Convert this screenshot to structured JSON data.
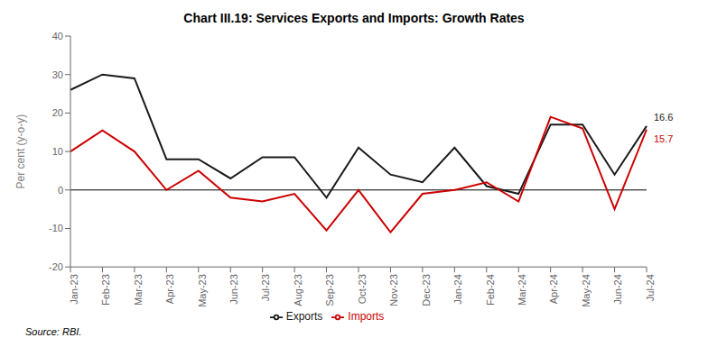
{
  "chart_data": {
    "type": "line",
    "title": "Chart III.19: Services Exports and Imports: Growth Rates",
    "ylabel": "Per cent (y-o-y)",
    "source": "Source: RBI.",
    "categories": [
      "Jan-23",
      "Feb-23",
      "Mar-23",
      "Apr-23",
      "May-23",
      "Jun-23",
      "Jul-23",
      "Aug-23",
      "Sep-23",
      "Oct-23",
      "Nov-23",
      "Dec-23",
      "Jan-24",
      "Feb-24",
      "Mar-24",
      "Apr-24",
      "May-24",
      "Jun-24",
      "Jul-24"
    ],
    "series": [
      {
        "name": "Exports",
        "color": "#1a1a1a",
        "values": [
          26.0,
          30.0,
          29.0,
          8.0,
          8.0,
          3.0,
          8.5,
          8.5,
          -2.0,
          11.0,
          4.0,
          2.0,
          11.0,
          1.0,
          -1.0,
          17.0,
          17.0,
          4.0,
          16.6
        ]
      },
      {
        "name": "Imports",
        "color": "#cc0000",
        "values": [
          10.0,
          15.5,
          10.0,
          0.0,
          5.0,
          -2.0,
          -3.0,
          -1.0,
          -10.5,
          0.0,
          -11.0,
          -1.0,
          0.0,
          2.0,
          -3.0,
          19.0,
          16.0,
          -5.0,
          15.7
        ]
      }
    ],
    "ylim": [
      -20,
      40
    ],
    "yticks": [
      -20,
      -10,
      0,
      10,
      20,
      30,
      40
    ],
    "hlines": [
      0
    ],
    "annotations": [
      {
        "text": "16.6",
        "x": "Jul-24",
        "y": 16.6,
        "color": "#1a1a1a"
      },
      {
        "text": "15.7",
        "x": "Jul-24",
        "y": 15.7,
        "color": "#cc0000"
      }
    ],
    "grid": false,
    "legend": "bottom"
  }
}
